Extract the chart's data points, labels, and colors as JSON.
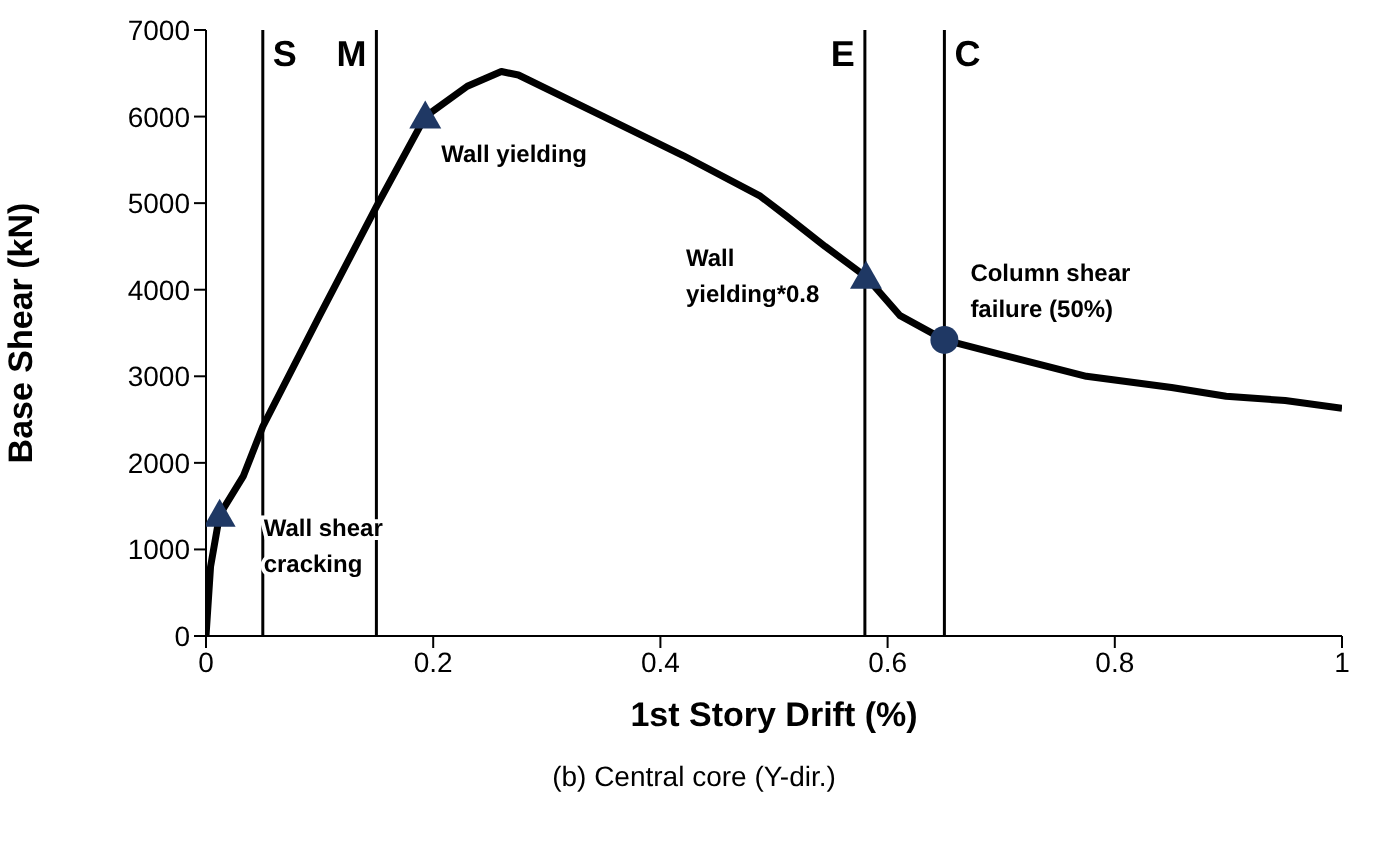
{
  "chart_data": {
    "type": "line",
    "xlabel": "1st Story Drift (%)",
    "ylabel": "Base Shear (kN)",
    "xlim": [
      0,
      1
    ],
    "xticks": [
      0,
      0.2,
      0.4,
      0.6,
      0.8,
      1
    ],
    "ylim": [
      0,
      7000
    ],
    "yticks": [
      0,
      1000,
      2000,
      3000,
      4000,
      5000,
      6000,
      7000
    ],
    "grid": false,
    "legend": false,
    "series": [
      {
        "type": "line",
        "color": "#000000",
        "marker": "none",
        "line_style": "solid",
        "x": [
          0,
          0.004,
          0.012,
          0.033,
          0.05,
          0.1,
          0.15,
          0.193,
          0.23,
          0.26,
          0.275,
          0.35,
          0.42,
          0.488,
          0.511,
          0.545,
          0.581,
          0.611,
          0.65,
          0.7,
          0.775,
          0.85,
          0.898,
          0.95,
          1
        ],
        "values": [
          0,
          800,
          1400,
          1850,
          2420,
          3700,
          4960,
          6000,
          6350,
          6520,
          6480,
          6000,
          5550,
          5080,
          4850,
          4500,
          4150,
          3700,
          3420,
          3250,
          3000,
          2870,
          2770,
          2720,
          2630
        ]
      },
      {
        "type": "scatter",
        "color": "#1f3864",
        "marker": "triangle",
        "x": [
          0.012,
          0.193,
          0.581
        ],
        "values": [
          1400,
          6000,
          4150
        ]
      },
      {
        "type": "scatter",
        "color": "#1f3864",
        "marker": "circle",
        "x": [
          0.65
        ],
        "values": [
          3420
        ]
      }
    ],
    "ref_lines": [
      {
        "axis": "x",
        "value": 0.05,
        "label": "S",
        "color": "#000000"
      },
      {
        "axis": "x",
        "value": 0.15,
        "label": "M",
        "color": "#000000"
      },
      {
        "axis": "x",
        "value": 0.58,
        "label": "E",
        "color": "#000000"
      },
      {
        "axis": "x",
        "value": 0.65,
        "label": "C",
        "color": "#000000"
      }
    ],
    "annotations": [
      {
        "text": "Wall shear cracking",
        "x": 0.012,
        "y": 1400
      },
      {
        "text": "Wall yielding",
        "x": 0.193,
        "y": 6000
      },
      {
        "text": "Wall yielding*0.8",
        "x": 0.581,
        "y": 4150
      },
      {
        "text": "Column shear failure (50%)",
        "x": 0.65,
        "y": 3420
      },
      "(b) Central core (Y-dir.)"
    ]
  }
}
